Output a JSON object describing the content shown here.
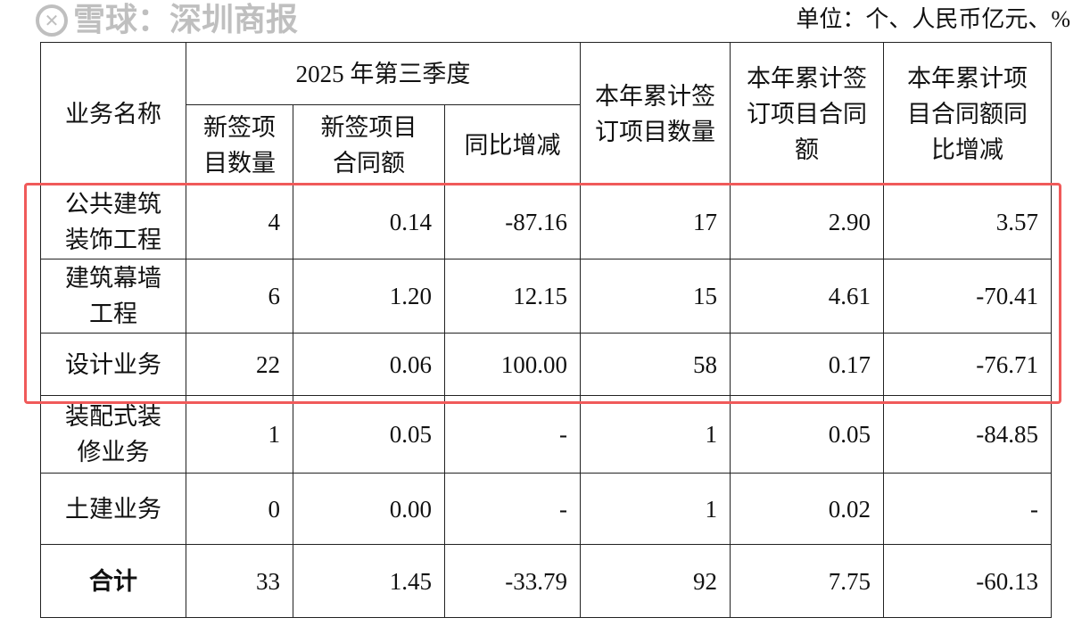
{
  "unit_note": "单位：个、人民币亿元、%",
  "header": {
    "business_name": "业务名称",
    "quarter_group": "2025 年第三季度",
    "q_new_count": "新签项目数量",
    "q_new_amount": "新签项目合同额",
    "q_yoy": "同比增减",
    "ytd_count": "本年累计签订项目数量",
    "ytd_amount": "本年累计签订项目合同额",
    "ytd_yoy": "本年累计项目合同额同比增减"
  },
  "rows": [
    {
      "name": "公共建筑装饰工程",
      "q_count": "4",
      "q_amount": "0.14",
      "q_yoy": "-87.16",
      "ytd_count": "17",
      "ytd_amount": "2.90",
      "ytd_yoy": "3.57"
    },
    {
      "name": "建筑幕墙工程",
      "q_count": "6",
      "q_amount": "1.20",
      "q_yoy": "12.15",
      "ytd_count": "15",
      "ytd_amount": "4.61",
      "ytd_yoy": "-70.41"
    },
    {
      "name": "设计业务",
      "q_count": "22",
      "q_amount": "0.06",
      "q_yoy": "100.00",
      "ytd_count": "58",
      "ytd_amount": "0.17",
      "ytd_yoy": "-76.71"
    },
    {
      "name": "装配式装修业务",
      "q_count": "1",
      "q_amount": "0.05",
      "q_yoy": "-",
      "ytd_count": "1",
      "ytd_amount": "0.05",
      "ytd_yoy": "-84.85"
    },
    {
      "name": "土建业务",
      "q_count": "0",
      "q_amount": "0.00",
      "q_yoy": "-",
      "ytd_count": "1",
      "ytd_amount": "0.02",
      "ytd_yoy": "-"
    }
  ],
  "total": {
    "name": "合计",
    "q_count": "33",
    "q_amount": "1.45",
    "q_yoy": "-33.79",
    "ytd_count": "92",
    "ytd_amount": "7.75",
    "ytd_yoy": "-60.13"
  },
  "highlight_color": "#f05a5a",
  "watermark": "雪球：深圳商报"
}
